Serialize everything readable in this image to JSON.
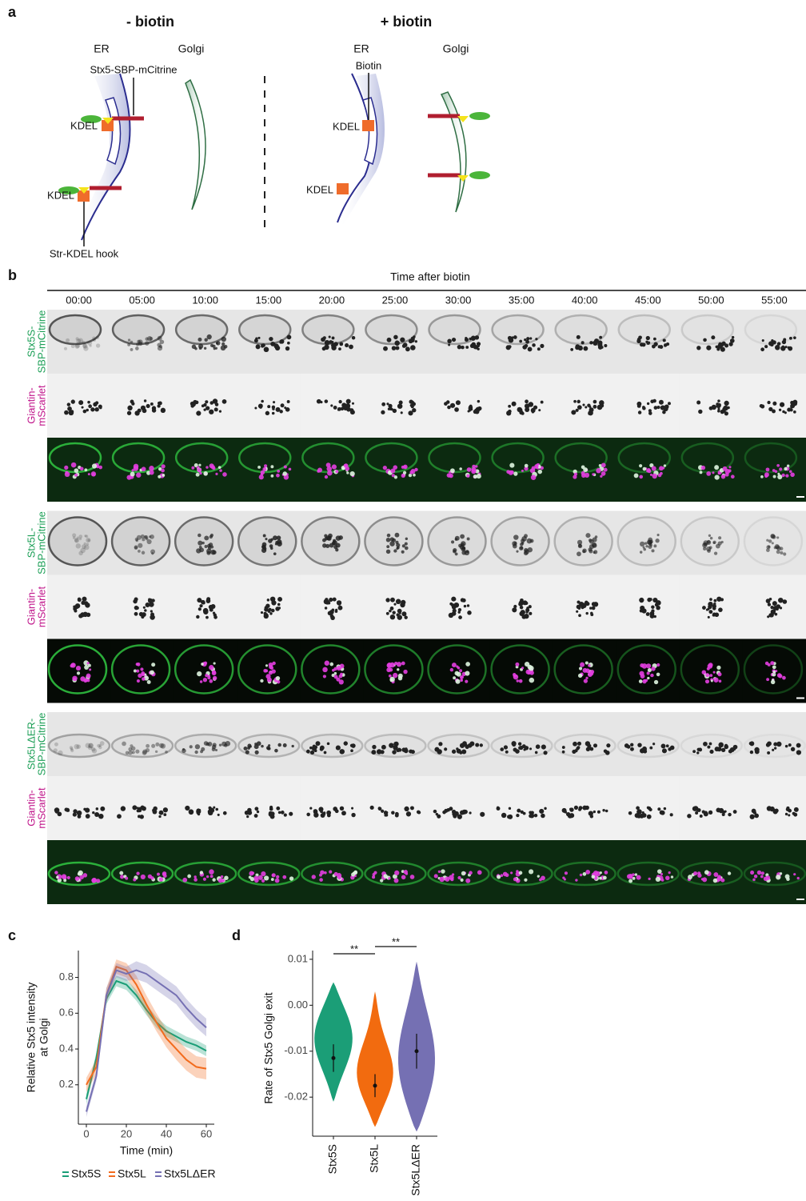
{
  "panel_a": {
    "label": "a",
    "minus": {
      "title": "- biotin",
      "er": "ER",
      "golgi": "Golgi",
      "reporter": "Stx5-SBP-mCitrine",
      "kdel": [
        "KDEL",
        "KDEL"
      ],
      "hook": "Str-KDEL hook"
    },
    "plus": {
      "title": "+ biotin",
      "er": "ER",
      "golgi": "Golgi",
      "biotin": "Biotin",
      "kdel": [
        "KDEL",
        "KDEL"
      ]
    }
  },
  "panel_b": {
    "label": "b",
    "header": "Time after biotin",
    "times": [
      "00:00",
      "05:00",
      "10:00",
      "15:00",
      "20:00",
      "25:00",
      "30:00",
      "35:00",
      "40:00",
      "45:00",
      "50:00",
      "55:00"
    ],
    "groups": [
      {
        "rows": [
          [
            "Stx5S-",
            "SBP-mCitrine"
          ],
          [
            "Giantin-",
            "mScarlet"
          ]
        ]
      },
      {
        "rows": [
          [
            "Stx5L-",
            "SBP-mCitrine"
          ],
          [
            "Giantin-",
            "mScarlet"
          ]
        ]
      },
      {
        "rows": [
          [
            "Stx5LΔER-",
            "SBP-mCitrine"
          ],
          [
            "Giantin-",
            "mScarlet"
          ]
        ]
      }
    ]
  },
  "chart_data": [
    {
      "type": "line",
      "panel": "c",
      "ylabel": [
        "Relative Stx5 intensity",
        "at Golgi"
      ],
      "xlabel": "Time (min)",
      "xlim": [
        -4,
        64
      ],
      "xticks": [
        0,
        20,
        40,
        60
      ],
      "ylim": [
        -0.02,
        0.95
      ],
      "yticks": [
        0.2,
        0.4,
        0.6,
        0.8
      ],
      "x": [
        0,
        5,
        10,
        15,
        20,
        25,
        30,
        35,
        40,
        45,
        50,
        55,
        60
      ],
      "series": [
        {
          "name": "Stx5S",
          "color": "#1b9e77",
          "values": [
            0.12,
            0.35,
            0.68,
            0.78,
            0.76,
            0.7,
            0.62,
            0.55,
            0.5,
            0.47,
            0.44,
            0.42,
            0.39
          ],
          "errors": [
            0.03,
            0.03,
            0.03,
            0.03,
            0.03,
            0.03,
            0.03,
            0.03,
            0.03,
            0.03,
            0.03,
            0.03,
            0.03
          ]
        },
        {
          "name": "Stx5L",
          "color": "#f26b1d",
          "values": [
            0.2,
            0.3,
            0.7,
            0.86,
            0.84,
            0.76,
            0.65,
            0.55,
            0.46,
            0.4,
            0.34,
            0.3,
            0.29
          ],
          "errors": [
            0.04,
            0.04,
            0.04,
            0.04,
            0.04,
            0.05,
            0.05,
            0.05,
            0.05,
            0.06,
            0.06,
            0.06,
            0.06
          ]
        },
        {
          "name": "Stx5LΔER",
          "color": "#7570b3",
          "values": [
            0.05,
            0.25,
            0.7,
            0.84,
            0.82,
            0.84,
            0.82,
            0.78,
            0.74,
            0.7,
            0.63,
            0.57,
            0.52
          ],
          "errors": [
            0.03,
            0.03,
            0.04,
            0.04,
            0.04,
            0.05,
            0.05,
            0.05,
            0.05,
            0.05,
            0.05,
            0.05,
            0.05
          ]
        }
      ]
    },
    {
      "type": "violin",
      "panel": "d",
      "ylabel": "Rate of Stx5 Golgi exit",
      "ylim": [
        -0.0285,
        0.0119
      ],
      "yticks": [
        0.01,
        {
          "value": 0,
          "label": "0.00"
        },
        -0.01,
        -0.02
      ],
      "categories": [
        "Stx5S",
        "Stx5L",
        "Stx5LΔER"
      ],
      "colors": [
        "#1b9e77",
        "#f26b0f",
        "#7570b3"
      ],
      "values": [
        -0.0115,
        -0.0175,
        -0.01
      ],
      "errors": [
        0.003,
        0.0025,
        0.0038
      ],
      "ranges": [
        [
          -0.021,
          0.005
        ],
        [
          -0.0265,
          0.003
        ],
        [
          -0.0275,
          0.0095
        ]
      ],
      "significance": [
        "**",
        "**"
      ]
    }
  ]
}
